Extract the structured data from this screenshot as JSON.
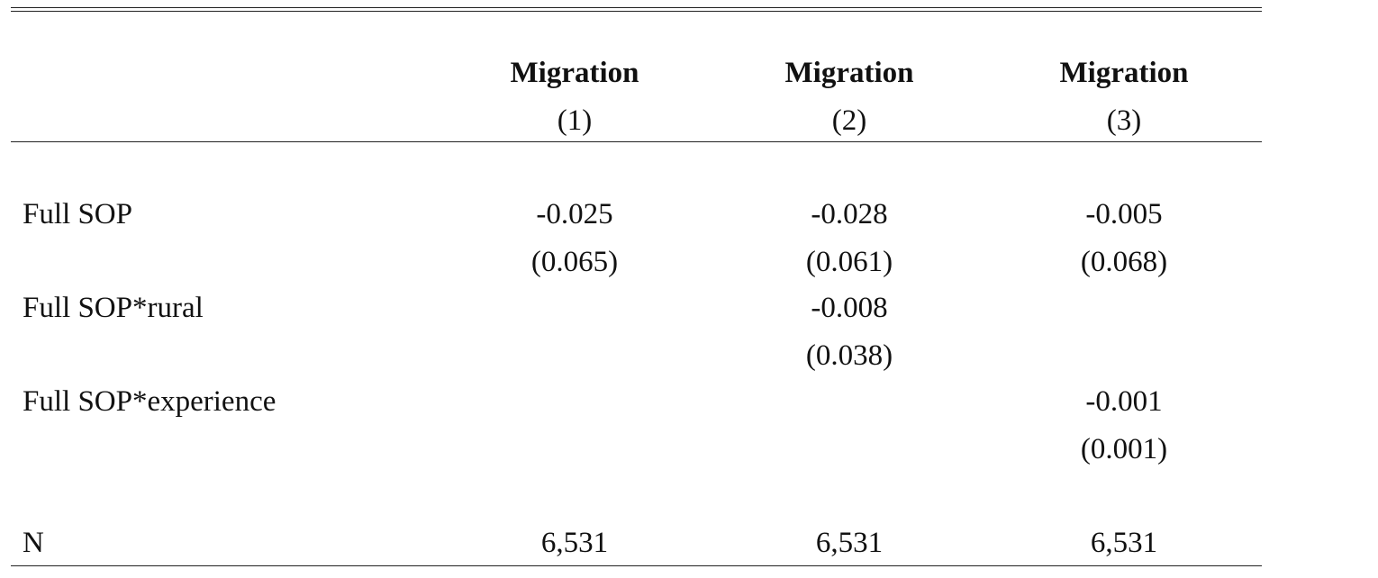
{
  "table": {
    "columns": [
      {
        "dep_var": "Migration",
        "number": "(1)"
      },
      {
        "dep_var": "Migration",
        "number": "(2)"
      },
      {
        "dep_var": "Migration",
        "number": "(3)"
      }
    ],
    "rows": [
      {
        "label": "Full SOP",
        "coef": [
          "-0.025",
          "-0.028",
          "-0.005"
        ],
        "se": [
          "(0.065)",
          "(0.061)",
          "(0.068)"
        ]
      },
      {
        "label": "Full SOP*rural",
        "coef": [
          "",
          "-0.008",
          ""
        ],
        "se": [
          "",
          "(0.038)",
          ""
        ]
      },
      {
        "label": "Full SOP*experience",
        "coef": [
          "",
          "",
          "-0.001"
        ],
        "se": [
          "",
          "",
          "(0.001)"
        ]
      }
    ],
    "n_row": {
      "label": "N",
      "values": [
        "6,531",
        "6,531",
        "6,531"
      ]
    }
  }
}
